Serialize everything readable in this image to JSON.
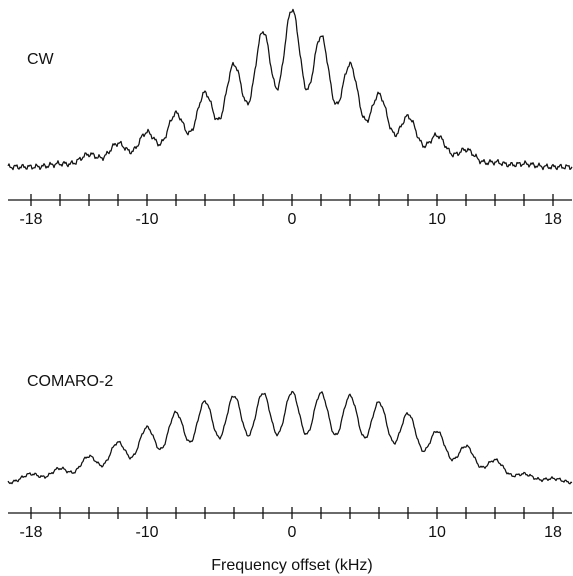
{
  "chart_data": [
    {
      "type": "line",
      "series": [
        {
          "name": "CW",
          "baseline": 0.02,
          "peaks": [
            {
              "x": -18,
              "y": 0.0
            },
            {
              "x": -16,
              "y": 0.02
            },
            {
              "x": -14,
              "y": 0.08
            },
            {
              "x": -12,
              "y": 0.15
            },
            {
              "x": -10,
              "y": 0.22
            },
            {
              "x": -8,
              "y": 0.34
            },
            {
              "x": -6,
              "y": 0.47
            },
            {
              "x": -4,
              "y": 0.65
            },
            {
              "x": -2,
              "y": 0.86
            },
            {
              "x": 0,
              "y": 1.0
            },
            {
              "x": 2,
              "y": 0.83
            },
            {
              "x": 4,
              "y": 0.65
            },
            {
              "x": 6,
              "y": 0.46
            },
            {
              "x": 8,
              "y": 0.32
            },
            {
              "x": 10,
              "y": 0.2
            },
            {
              "x": 12,
              "y": 0.11
            },
            {
              "x": 14,
              "y": 0.03
            },
            {
              "x": 16,
              "y": 0.02
            },
            {
              "x": 18,
              "y": 0.0
            }
          ]
        }
      ],
      "x_ticks": [
        "-18",
        "-10",
        "0",
        "10",
        "18"
      ],
      "x_tick_values": [
        -18,
        -10,
        0,
        10,
        18
      ],
      "xlim": [
        -19,
        19
      ],
      "xlabel": "",
      "grid": false
    },
    {
      "type": "line",
      "series": [
        {
          "name": "COMARO-2",
          "baseline": 0.02,
          "peaks": [
            {
              "x": -18,
              "y": 0.1
            },
            {
              "x": -16,
              "y": 0.16
            },
            {
              "x": -14,
              "y": 0.29
            },
            {
              "x": -12,
              "y": 0.44
            },
            {
              "x": -10,
              "y": 0.6
            },
            {
              "x": -8,
              "y": 0.76
            },
            {
              "x": -6,
              "y": 0.88
            },
            {
              "x": -4,
              "y": 0.94
            },
            {
              "x": -2,
              "y": 0.97
            },
            {
              "x": 0,
              "y": 0.98
            },
            {
              "x": 2,
              "y": 0.97
            },
            {
              "x": 4,
              "y": 0.94
            },
            {
              "x": 6,
              "y": 0.87
            },
            {
              "x": 8,
              "y": 0.75
            },
            {
              "x": 10,
              "y": 0.56
            },
            {
              "x": 12,
              "y": 0.4
            },
            {
              "x": 14,
              "y": 0.25
            },
            {
              "x": 16,
              "y": 0.1
            },
            {
              "x": 18,
              "y": 0.05
            }
          ]
        }
      ],
      "x_ticks": [
        "-18",
        "-10",
        "0",
        "10",
        "18"
      ],
      "x_tick_values": [
        -18,
        -10,
        0,
        10,
        18
      ],
      "xlim": [
        -19,
        19
      ],
      "xlabel": "Frequency offset (kHz)",
      "grid": false
    }
  ],
  "colors": {
    "ink": "#111111",
    "background": "#ffffff"
  }
}
